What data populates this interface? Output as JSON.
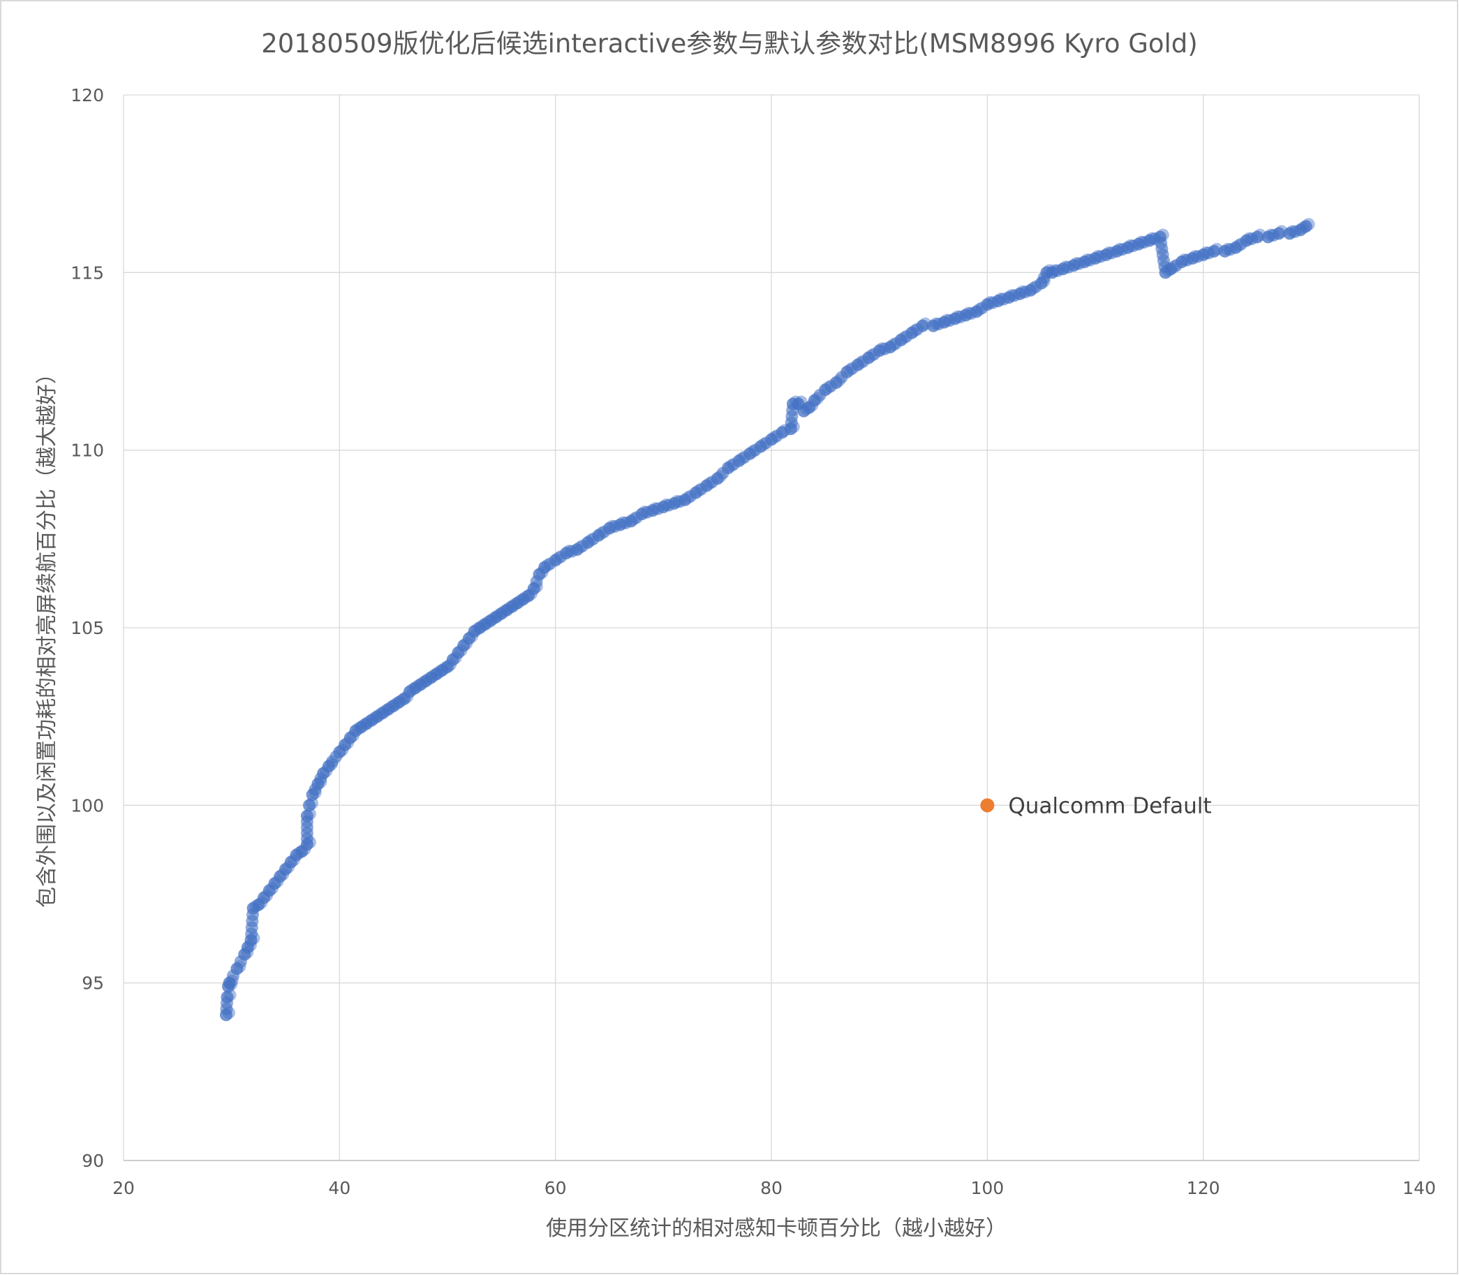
{
  "chart_data": {
    "type": "scatter",
    "title": "20180509版优化后候选interactive参数与默认参数对比(MSM8996 Kyro Gold)",
    "xlabel": "使用分区统计的相对感知卡顿百分比（越小越好）",
    "ylabel": "包含外围以及闲置功耗的相对亮屏续航百分比（越大越好）",
    "xlim": [
      20,
      140
    ],
    "ylim": [
      90,
      120
    ],
    "x_ticks": [
      "20",
      "40",
      "60",
      "80",
      "100",
      "120",
      "140"
    ],
    "y_ticks": [
      "90",
      "95",
      "100",
      "105",
      "110",
      "115",
      "120"
    ],
    "grid": true,
    "legend": "none",
    "series": [
      {
        "color": "#4472c4",
        "x": [
          29.5,
          29.6,
          29.7,
          29.8,
          30.5,
          31.2,
          31.5,
          31.8,
          32.0,
          32.5,
          33.0,
          33.5,
          34.0,
          34.5,
          35.0,
          35.5,
          36.0,
          36.5,
          37.0,
          37.0,
          37.2,
          37.5,
          38.0,
          38.5,
          39.0,
          40.0,
          40.5,
          41.0,
          41.5,
          42.0,
          42.5,
          43.0,
          43.5,
          44.0,
          44.5,
          45.0,
          45.5,
          46.0,
          46.5,
          47.0,
          47.5,
          48.0,
          48.5,
          49.0,
          49.5,
          50.0,
          50.5,
          51.0,
          51.5,
          52.0,
          52.5,
          53.0,
          53.5,
          54.0,
          54.5,
          55.0,
          55.5,
          56.0,
          56.5,
          57.0,
          57.5,
          58.0,
          58.5,
          59.0,
          60.0,
          61.0,
          62.0,
          63.0,
          64.0,
          65.0,
          66.0,
          67.0,
          68.0,
          69.0,
          70.0,
          71.0,
          72.0,
          73.0,
          74.0,
          75.0,
          76.0,
          77.0,
          78.0,
          79.0,
          80.0,
          81.0,
          81.8,
          82.0,
          82.5,
          83.0,
          83.5,
          84.0,
          85.0,
          86.0,
          87.0,
          88.0,
          89.0,
          90.0,
          91.0,
          92.0,
          93.0,
          94.0,
          95.0,
          96.0,
          97.0,
          98.0,
          99.0,
          100.0,
          101.0,
          102.0,
          103.0,
          104.0,
          105.0,
          105.5,
          106.0,
          107.0,
          108.0,
          109.0,
          110.0,
          111.0,
          112.0,
          113.0,
          114.0,
          115.0,
          116.0,
          116.5,
          117.0,
          118.0,
          119.0,
          120.0,
          121.0,
          122.0,
          123.0,
          124.0,
          125.0,
          126.0,
          127.0,
          128.0,
          129.0,
          129.5
        ],
        "y": [
          94.1,
          94.6,
          94.9,
          95.0,
          95.4,
          95.8,
          96.0,
          96.2,
          97.1,
          97.2,
          97.4,
          97.6,
          97.8,
          98.0,
          98.2,
          98.4,
          98.6,
          98.7,
          98.9,
          99.7,
          100.0,
          100.3,
          100.6,
          100.9,
          101.1,
          101.5,
          101.7,
          101.9,
          102.1,
          102.2,
          102.3,
          102.4,
          102.5,
          102.6,
          102.7,
          102.8,
          102.9,
          103.0,
          103.2,
          103.3,
          103.4,
          103.5,
          103.6,
          103.7,
          103.8,
          103.9,
          104.1,
          104.3,
          104.5,
          104.7,
          104.9,
          105.0,
          105.1,
          105.2,
          105.3,
          105.4,
          105.5,
          105.6,
          105.7,
          105.8,
          105.9,
          106.1,
          106.5,
          106.7,
          106.9,
          107.1,
          107.2,
          107.4,
          107.6,
          107.8,
          107.9,
          108.0,
          108.2,
          108.3,
          108.4,
          108.5,
          108.6,
          108.8,
          109.0,
          109.2,
          109.5,
          109.7,
          109.9,
          110.1,
          110.3,
          110.5,
          110.6,
          111.3,
          111.3,
          111.1,
          111.2,
          111.4,
          111.7,
          111.9,
          112.2,
          112.4,
          112.6,
          112.8,
          112.9,
          113.1,
          113.3,
          113.5,
          113.5,
          113.6,
          113.7,
          113.8,
          113.9,
          114.1,
          114.2,
          114.3,
          114.4,
          114.5,
          114.7,
          115.0,
          115.0,
          115.1,
          115.2,
          115.3,
          115.4,
          115.5,
          115.6,
          115.7,
          115.8,
          115.9,
          116.0,
          115.0,
          115.1,
          115.3,
          115.4,
          115.5,
          115.6,
          115.6,
          115.7,
          115.9,
          116.0,
          116.0,
          116.1,
          116.1,
          116.2,
          116.3
        ]
      },
      {
        "name": "Qualcomm Default",
        "color": "#ed7d31",
        "x": [
          100
        ],
        "y": [
          100
        ]
      }
    ],
    "annotations": [
      {
        "text": "Qualcomm Default",
        "x": 100,
        "y": 100
      }
    ]
  }
}
